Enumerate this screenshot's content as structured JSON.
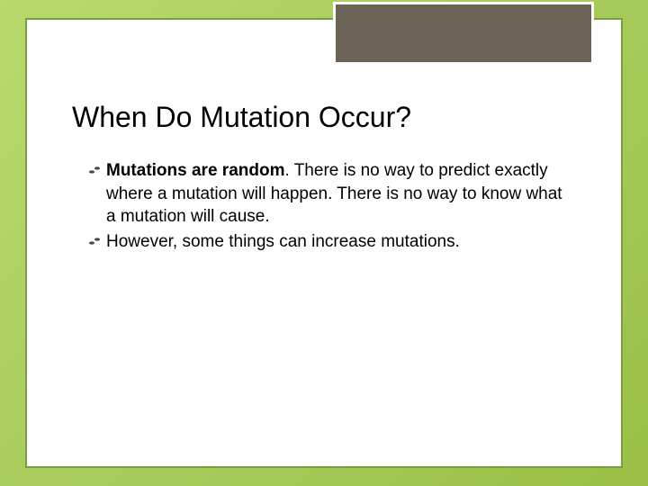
{
  "slide": {
    "title": "When Do Mutation Occur?",
    "bullets": [
      {
        "bold_lead": "Mutations are random",
        "rest": ". There is no way to predict exactly where a mutation will happen. There is no way to know what a mutation will cause."
      },
      {
        "bold_lead": "",
        "rest": "However, some things can increase mutations."
      }
    ]
  },
  "style": {
    "background_gradient_start": "#b8d96b",
    "background_gradient_end": "#9bc048",
    "frame_border_color": "#7a9e3e",
    "frame_background": "#ffffff",
    "header_box_bg": "#6b6456",
    "header_box_border": "#ffffff",
    "title_fontsize": 32,
    "body_fontsize": 19,
    "text_color": "#000000"
  }
}
